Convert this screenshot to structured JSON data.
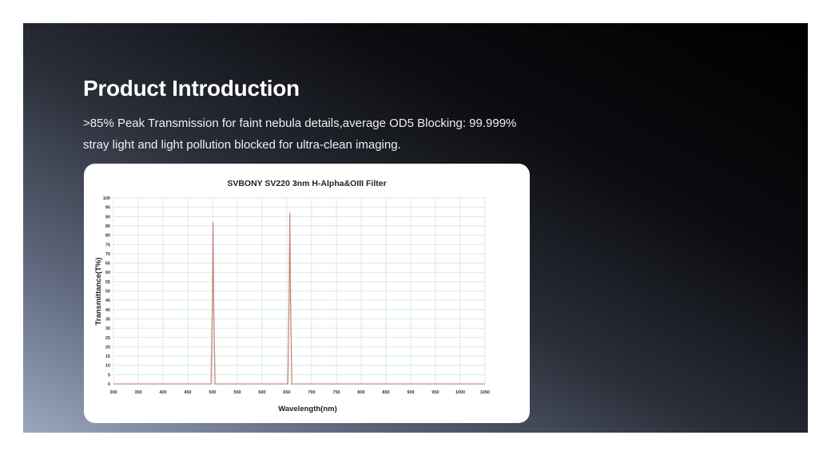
{
  "page": {
    "title": "Product Introduction",
    "description_line1": ">85% Peak Transmission for faint nebula details,average OD5 Blocking: 99.999%",
    "description_line2": "stray light and light pollution blocked for ultra-clean imaging."
  },
  "chart_data": {
    "type": "line",
    "title": "SVBONY SV220 3nm H-Alpha&OIII Filter",
    "xlabel": "Wavelength(nm)",
    "ylabel": "Transmittance(T%)",
    "xlim": [
      300,
      1050
    ],
    "ylim": [
      0,
      100
    ],
    "xticks": [
      300,
      350,
      400,
      450,
      500,
      550,
      600,
      650,
      700,
      750,
      800,
      850,
      900,
      950,
      1000,
      1050
    ],
    "yticks": [
      0,
      5,
      10,
      15,
      20,
      25,
      30,
      35,
      40,
      45,
      50,
      55,
      60,
      65,
      70,
      75,
      80,
      85,
      90,
      95,
      100
    ],
    "grid": true,
    "line_color": "#c98a80",
    "grid_color": "#cfe2e6",
    "series": [
      {
        "x": [
          300,
          497,
          499.5,
          501,
          502.5,
          505,
          652,
          654.5,
          656,
          657.5,
          660,
          1050
        ],
        "y": [
          0,
          0,
          40,
          87,
          40,
          0,
          0,
          45,
          92,
          45,
          0,
          0
        ]
      }
    ]
  }
}
